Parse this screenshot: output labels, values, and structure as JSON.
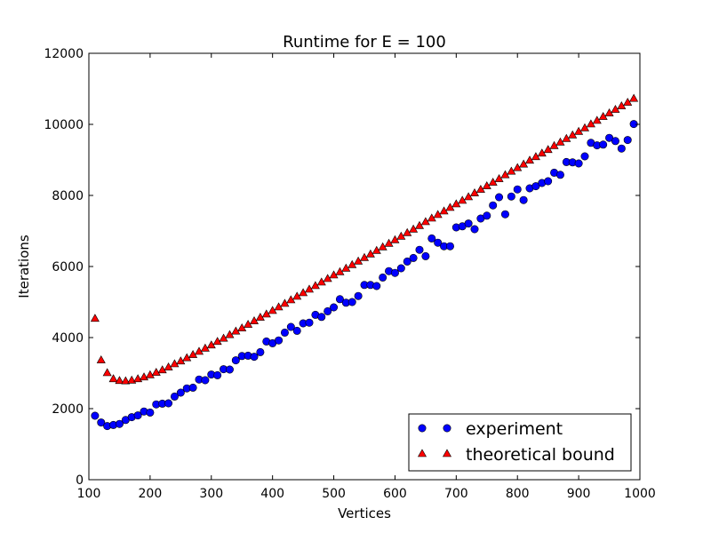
{
  "chart_data": {
    "type": "scatter",
    "title": "Runtime for E = 100",
    "xlabel": "Vertices",
    "ylabel": "Iterations",
    "xlim": [
      100,
      1000
    ],
    "ylim": [
      0,
      12000
    ],
    "xticks": [
      100,
      200,
      300,
      400,
      500,
      600,
      700,
      800,
      900,
      1000
    ],
    "yticks": [
      0,
      2000,
      4000,
      6000,
      8000,
      10000,
      12000
    ],
    "grid": false,
    "legend_position": "lower-right",
    "x": [
      110,
      120,
      130,
      140,
      150,
      160,
      170,
      180,
      190,
      200,
      210,
      220,
      230,
      240,
      250,
      260,
      270,
      280,
      290,
      300,
      310,
      320,
      330,
      340,
      350,
      360,
      370,
      380,
      390,
      400,
      410,
      420,
      430,
      440,
      450,
      460,
      470,
      480,
      490,
      500,
      510,
      520,
      530,
      540,
      550,
      560,
      570,
      580,
      590,
      600,
      610,
      620,
      630,
      640,
      650,
      660,
      670,
      680,
      690,
      700,
      710,
      720,
      730,
      740,
      750,
      760,
      770,
      780,
      790,
      800,
      810,
      820,
      830,
      840,
      850,
      860,
      870,
      880,
      890,
      900,
      910,
      920,
      930,
      940,
      950,
      960,
      970,
      980,
      990
    ],
    "series": [
      {
        "name": "experiment",
        "marker": "circle",
        "color": "#0000ff",
        "values": [
          1800,
          1610,
          1510,
          1540,
          1570,
          1680,
          1760,
          1810,
          1920,
          1890,
          2120,
          2140,
          2150,
          2340,
          2450,
          2570,
          2590,
          2820,
          2800,
          2960,
          2940,
          3110,
          3100,
          3360,
          3480,
          3490,
          3460,
          3590,
          3890,
          3840,
          3920,
          4140,
          4300,
          4190,
          4400,
          4420,
          4640,
          4580,
          4740,
          4850,
          5080,
          4980,
          5000,
          5170,
          5480,
          5480,
          5450,
          5690,
          5870,
          5820,
          5950,
          6140,
          6240,
          6470,
          6290,
          6790,
          6670,
          6570,
          6570,
          7100,
          7130,
          7210,
          7050,
          7350,
          7430,
          7720,
          7950,
          7470,
          7970,
          8170,
          7870,
          8200,
          8260,
          8350,
          8400,
          8640,
          8580,
          8940,
          8930,
          8900,
          9100,
          9480,
          9410,
          9430,
          9620,
          9530,
          9320,
          9560,
          10010
        ]
      },
      {
        "name": "theoretical bound",
        "marker": "triangle",
        "color": "#ff0000",
        "values": [
          4540,
          3370,
          3010,
          2840,
          2790,
          2780,
          2800,
          2840,
          2890,
          2950,
          3020,
          3090,
          3170,
          3260,
          3340,
          3430,
          3520,
          3610,
          3700,
          3790,
          3890,
          3980,
          4080,
          4180,
          4270,
          4370,
          4470,
          4570,
          4660,
          4760,
          4860,
          4960,
          5060,
          5160,
          5260,
          5360,
          5460,
          5560,
          5660,
          5760,
          5850,
          5950,
          6050,
          6150,
          6250,
          6350,
          6450,
          6550,
          6650,
          6750,
          6850,
          6950,
          7050,
          7150,
          7260,
          7360,
          7460,
          7560,
          7660,
          7760,
          7860,
          7960,
          8070,
          8170,
          8270,
          8370,
          8470,
          8580,
          8680,
          8780,
          8880,
          8990,
          9090,
          9190,
          9290,
          9400,
          9500,
          9600,
          9700,
          9800,
          9900,
          10010,
          10110,
          10220,
          10320,
          10420,
          10520,
          10620,
          10730
        ]
      }
    ]
  }
}
